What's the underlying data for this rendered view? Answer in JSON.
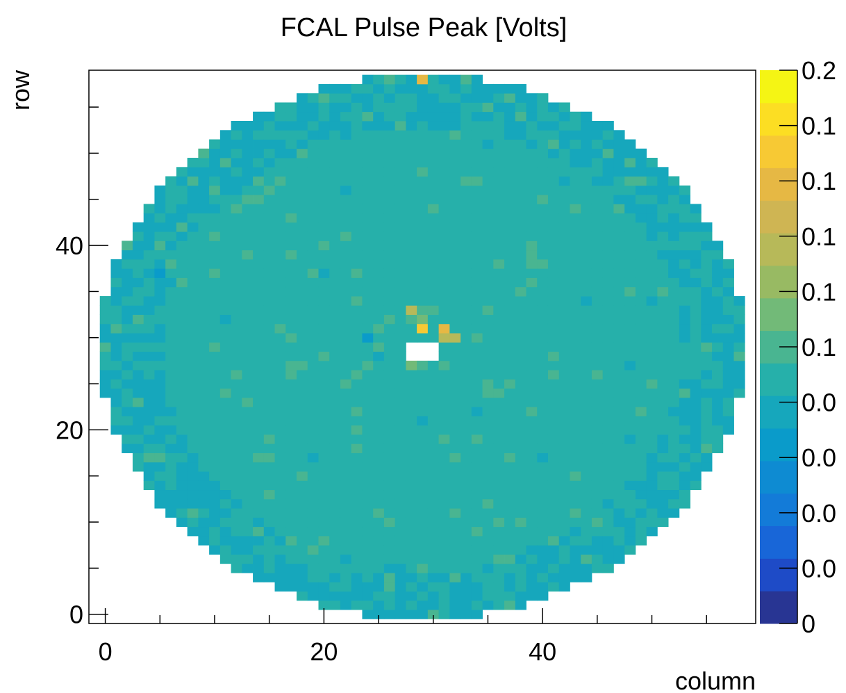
{
  "chart_data": {
    "type": "heatmap",
    "title": "FCAL Pulse Peak [Volts]",
    "xlabel": "column",
    "ylabel": "row",
    "xlim": [
      -1.5,
      59.5
    ],
    "ylim": [
      -1,
      59
    ],
    "x_ticks": [
      0,
      20,
      40
    ],
    "y_ticks": [
      0,
      20,
      40
    ],
    "grid": false,
    "legend": "colorbar-right",
    "colorbar": {
      "range": [
        0,
        0.2
      ],
      "tick_labels": [
        "0",
        "0.0",
        "0.0",
        "0.0",
        "0.0",
        "0.1",
        "0.1",
        "0.1",
        "0.1",
        "0.1",
        "0.2"
      ],
      "colors": [
        "#283593",
        "#1e4bc7",
        "#1866d8",
        "#137bd8",
        "#0e8bd2",
        "#0a9bca",
        "#16a7bc",
        "#26b0aa",
        "#49b591",
        "#72ba78",
        "#98ba63",
        "#b7b959",
        "#cfb553",
        "#e6b844",
        "#f7c934",
        "#fcde23",
        "#f5f514"
      ]
    },
    "grid_size": {
      "columns": 59,
      "rows": 59
    },
    "detector": {
      "center": [
        29,
        29
      ],
      "outer_radius": 29.5,
      "inner_hole": {
        "columns": [
          28,
          30
        ],
        "rows": [
          28,
          29
        ]
      }
    },
    "baseline_value": 0.092,
    "cells": [
      [
        29,
        58,
        0.155
      ],
      [
        29,
        31,
        0.175
      ],
      [
        31,
        31,
        0.155
      ],
      [
        31,
        30,
        0.135
      ],
      [
        32,
        30,
        0.135
      ],
      [
        28,
        33,
        0.13
      ],
      [
        28,
        27,
        0.115
      ],
      [
        29,
        32,
        0.11
      ],
      [
        52,
        7,
        0.12
      ],
      [
        50,
        8,
        0.105
      ],
      [
        4,
        12,
        0.11
      ],
      [
        49,
        52,
        0.11
      ],
      [
        14,
        45,
        0.1
      ],
      [
        55,
        18,
        0.1
      ],
      [
        36,
        24,
        0.1
      ],
      [
        10,
        46,
        0.1
      ],
      [
        47,
        44,
        0.098
      ],
      [
        20,
        40,
        0.1
      ],
      [
        45,
        26,
        0.1
      ],
      [
        25,
        31,
        0.1
      ],
      [
        30,
        33,
        0.1
      ],
      [
        38,
        35,
        0.099
      ],
      [
        24,
        27,
        0.1
      ],
      [
        34,
        30,
        0.1
      ],
      [
        35,
        25,
        0.1
      ],
      [
        5,
        37,
        0.07
      ],
      [
        3,
        36,
        0.075
      ],
      [
        24,
        30,
        0.07
      ],
      [
        11,
        32,
        0.075
      ],
      [
        44,
        34,
        0.075
      ],
      [
        20,
        37,
        0.08
      ],
      [
        35,
        51,
        0.08
      ],
      [
        25,
        28,
        0.078
      ],
      [
        34,
        22,
        0.08
      ],
      [
        48,
        19,
        0.075
      ],
      [
        40,
        17,
        0.075
      ],
      [
        19,
        17,
        0.08
      ],
      [
        53,
        14,
        0.075
      ],
      [
        16,
        6,
        0.08
      ],
      [
        42,
        4,
        0.08
      ],
      [
        56,
        40,
        0.08
      ],
      [
        1,
        26,
        0.08
      ],
      [
        14,
        23,
        0.085
      ],
      [
        29,
        21,
        0.08
      ],
      [
        31,
        13,
        0.085
      ],
      [
        48,
        27,
        0.08
      ],
      [
        9,
        20,
        0.085
      ],
      [
        38,
        40,
        0.085
      ],
      [
        21,
        55,
        0.08
      ],
      [
        42,
        47,
        0.08
      ],
      [
        50,
        34,
        0.08
      ],
      [
        26,
        24,
        0.085
      ],
      [
        33,
        56,
        0.08
      ],
      [
        43,
        10,
        0.085
      ],
      [
        13,
        15,
        0.085
      ],
      [
        57,
        27,
        0.08
      ],
      [
        22,
        46,
        0.08
      ],
      [
        36,
        42,
        0.085
      ],
      [
        18,
        29,
        0.085
      ]
    ]
  }
}
